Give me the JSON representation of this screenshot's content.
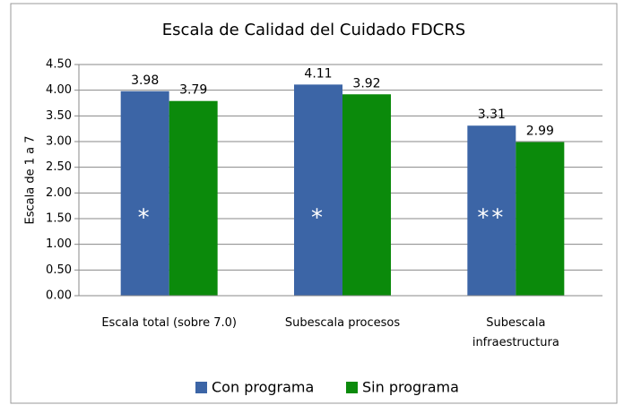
{
  "chart_data": {
    "type": "bar",
    "title": "Escala de Calidad del Cuidado FDCRS",
    "y_label": "Escala de 1 a 7",
    "categories": [
      "Escala total  (sobre 7.0)",
      "Subescala procesos",
      "Subescala\ninfraestructura"
    ],
    "series": [
      {
        "name": "Con programa",
        "color": "#3c65a6",
        "values": [
          3.98,
          4.11,
          3.31
        ]
      },
      {
        "name": "Sin programa",
        "color": "#0b8a0b",
        "values": [
          3.79,
          3.92,
          2.99
        ]
      }
    ],
    "annotations": [
      "*",
      "*",
      "**"
    ],
    "ylim": [
      0,
      4.5
    ],
    "yticks": [
      {
        "value": 0,
        "label": "0.00"
      },
      {
        "value": 0.5,
        "label": "0.50"
      },
      {
        "value": 1,
        "label": "1.00"
      },
      {
        "value": 1.5,
        "label": "1.50"
      },
      {
        "value": 2,
        "label": "2.00"
      },
      {
        "value": 2.5,
        "label": "2.50"
      },
      {
        "value": 3,
        "label": "3.00"
      },
      {
        "value": 3.5,
        "label": "3.50"
      },
      {
        "value": 4,
        "label": "4.00"
      },
      {
        "value": 4.5,
        "label": "4.50"
      }
    ],
    "legend": "bottom"
  }
}
